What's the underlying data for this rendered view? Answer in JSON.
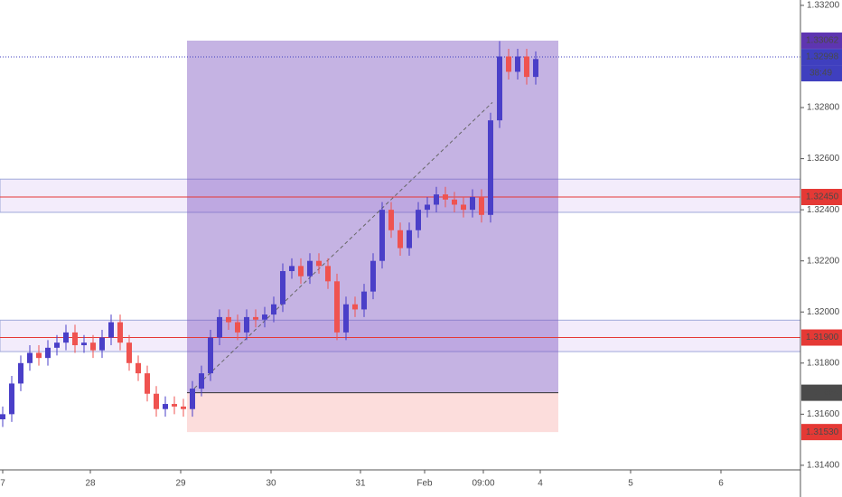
{
  "chart_data": {
    "type": "candlestick",
    "open": [
      1.3158,
      1.316,
      1.3172,
      1.318,
      1.3184,
      1.3182,
      1.3186,
      1.3188,
      1.3192,
      1.3187,
      1.3188,
      1.3185,
      1.319,
      1.3196,
      1.3188,
      1.318,
      1.3176,
      1.3168,
      1.3162,
      1.3164,
      1.3163,
      1.3162,
      1.317,
      1.3176,
      1.319,
      1.3198,
      1.3196,
      1.3192,
      1.3198,
      1.3197,
      1.3199,
      1.3203,
      1.3216,
      1.3218,
      1.3214,
      1.322,
      1.3218,
      1.3212,
      1.3192,
      1.3203,
      1.3201,
      1.3208,
      1.322,
      1.324,
      1.3232,
      1.3225,
      1.3232,
      1.324,
      1.3242,
      1.3246,
      1.3244,
      1.3242,
      1.324,
      1.3245,
      1.3238,
      1.3275,
      1.33,
      1.3294,
      1.33,
      1.3292
    ],
    "high": [
      1.3163,
      1.3175,
      1.3183,
      1.3187,
      1.3187,
      1.3189,
      1.3191,
      1.3195,
      1.3195,
      1.3191,
      1.3191,
      1.3193,
      1.3199,
      1.3199,
      1.3191,
      1.3183,
      1.3179,
      1.3171,
      1.3167,
      1.3167,
      1.3166,
      1.3173,
      1.3179,
      1.3193,
      1.3201,
      1.3201,
      1.3199,
      1.3201,
      1.3201,
      1.3202,
      1.3206,
      1.3219,
      1.3221,
      1.3221,
      1.3223,
      1.3223,
      1.3221,
      1.3215,
      1.3206,
      1.3206,
      1.3211,
      1.3223,
      1.3243,
      1.3243,
      1.3235,
      1.3235,
      1.3243,
      1.3245,
      1.3249,
      1.3249,
      1.3247,
      1.3245,
      1.3248,
      1.3248,
      1.3278,
      1.3306,
      1.3303,
      1.3303,
      1.3303,
      1.3302
    ],
    "low": [
      1.3155,
      1.3157,
      1.3169,
      1.3177,
      1.3179,
      1.3179,
      1.3183,
      1.3185,
      1.3184,
      1.3184,
      1.3182,
      1.3182,
      1.3187,
      1.3185,
      1.3177,
      1.3173,
      1.3165,
      1.3159,
      1.3159,
      1.316,
      1.3159,
      1.3159,
      1.3167,
      1.3173,
      1.3187,
      1.3193,
      1.3189,
      1.3189,
      1.3194,
      1.3194,
      1.3196,
      1.32,
      1.3213,
      1.3211,
      1.3211,
      1.3215,
      1.3209,
      1.3189,
      1.3189,
      1.3198,
      1.3198,
      1.3205,
      1.3217,
      1.3229,
      1.3222,
      1.3222,
      1.3229,
      1.3237,
      1.3239,
      1.3241,
      1.3239,
      1.3237,
      1.3237,
      1.3235,
      1.3235,
      1.3272,
      1.3291,
      1.3291,
      1.3289,
      1.3289
    ],
    "close": [
      1.316,
      1.3172,
      1.318,
      1.3184,
      1.3182,
      1.3186,
      1.3188,
      1.3192,
      1.3187,
      1.3188,
      1.3185,
      1.319,
      1.3196,
      1.3188,
      1.318,
      1.3176,
      1.3168,
      1.3162,
      1.3164,
      1.3163,
      1.3162,
      1.317,
      1.3176,
      1.319,
      1.3198,
      1.3196,
      1.3192,
      1.3198,
      1.3197,
      1.3199,
      1.3203,
      1.3216,
      1.3218,
      1.3214,
      1.322,
      1.3218,
      1.3212,
      1.3192,
      1.3203,
      1.3201,
      1.3208,
      1.322,
      1.324,
      1.3232,
      1.3225,
      1.3232,
      1.324,
      1.3242,
      1.3246,
      1.3244,
      1.3242,
      1.324,
      1.3245,
      1.3238,
      1.3275,
      1.33,
      1.3294,
      1.33,
      1.3292,
      1.3299
    ],
    "up_color": "#4a3fc8",
    "down_color": "#ef5350",
    "xlim": [
      0,
      88.6
    ],
    "ylim": [
      1.31382,
      1.33221
    ],
    "xticks": [
      {
        "value": 0.3,
        "label": "7"
      },
      {
        "value": 10,
        "label": "28"
      },
      {
        "value": 20,
        "label": "29"
      },
      {
        "value": 30,
        "label": "30"
      },
      {
        "value": 39.9,
        "label": "31"
      },
      {
        "value": 47,
        "label": "Feb"
      },
      {
        "value": 53.5,
        "label": "09:00"
      },
      {
        "value": 59.8,
        "label": "4"
      },
      {
        "value": 69.8,
        "label": "5"
      },
      {
        "value": 79.8,
        "label": "6"
      }
    ],
    "yticks": [
      {
        "value": 1.332,
        "label": "1.33200"
      },
      {
        "value": 1.328,
        "label": "1.32800"
      },
      {
        "value": 1.326,
        "label": "1.32600"
      },
      {
        "value": 1.324,
        "label": "1.32400"
      },
      {
        "value": 1.322,
        "label": "1.32200"
      },
      {
        "value": 1.32,
        "label": "1.32000"
      },
      {
        "value": 1.318,
        "label": "1.31800"
      },
      {
        "value": 1.316,
        "label": "1.31600"
      },
      {
        "value": 1.314,
        "label": "1.31400"
      }
    ],
    "zones": [
      {
        "from": 1.3239,
        "to": 1.3252
      },
      {
        "from": 1.31845,
        "to": 1.31968
      }
    ],
    "levels": [
      {
        "value": 1.3245,
        "label": "1.32450",
        "color": "#e53935"
      },
      {
        "value": 1.319,
        "label": "1.31900",
        "color": "#e53935"
      }
    ],
    "current_price": {
      "value": 1.32998,
      "label": "1.32998",
      "countdown": "38:49",
      "color": "#3f3fbf"
    },
    "position": {
      "start_x": 20.7,
      "end_x": 61.8,
      "target": {
        "value": 1.33062,
        "label": "1.33062"
      },
      "entry": {
        "value": 1.31684,
        "label": "1.31684"
      },
      "stop": {
        "value": 1.3153,
        "label": "1.31530"
      }
    },
    "trend_line": {
      "x": [
        21,
        54.5
      ],
      "y": [
        1.31684,
        1.3282
      ]
    }
  }
}
